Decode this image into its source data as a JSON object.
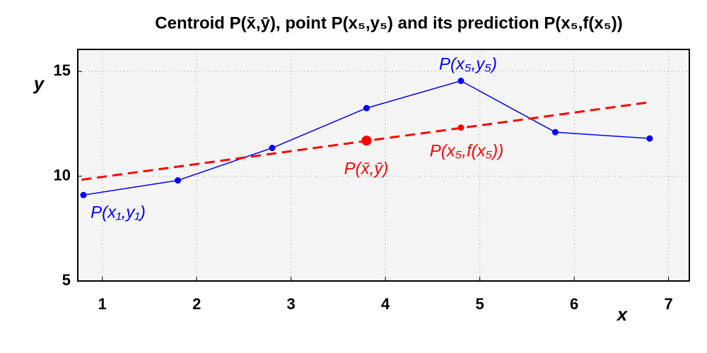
{
  "chart_data": {
    "type": "line",
    "title": "Centroid  P(x̄,ȳ), point  P(x₅,y₅) and its prediction  P(x₅,f(x₅))",
    "xlabel": "x",
    "ylabel": "y",
    "series": [
      {
        "color": "#0000ff",
        "style": "solid",
        "markers": true,
        "x": [
          0.8,
          1.8,
          2.8,
          3.8,
          4.8,
          5.8,
          6.8
        ],
        "values": [
          9.1,
          9.8,
          11.35,
          13.25,
          14.55,
          12.1,
          11.8
        ]
      },
      {
        "color": "#ff0000",
        "style": "dashed",
        "markers": false,
        "x": [
          0.78,
          6.8
        ],
        "values": [
          9.83,
          13.53
        ]
      }
    ],
    "points": [
      {
        "x": 3.8,
        "y": 11.7,
        "color": "#ff0000",
        "size": 7
      },
      {
        "x": 4.8,
        "y": 12.32,
        "color": "#ff0000",
        "size": 4.5
      }
    ],
    "annotations": [
      {
        "text": "P(x₅,y₅)",
        "color": "#0000ff"
      },
      {
        "text": "P(x̄,ȳ)",
        "color": "#ff0000"
      },
      {
        "text": "P(x₅,f(x₅))",
        "color": "#ff0000"
      },
      {
        "text": "P(x₁,y₁)",
        "color": "#0000ff"
      }
    ],
    "xlim": [
      0.74,
      7.22
    ],
    "ylim": [
      5,
      16.05
    ],
    "xticks": [
      1,
      2,
      3,
      4,
      5,
      6,
      7
    ],
    "yticks": [
      5,
      10,
      15
    ],
    "grid": true
  }
}
